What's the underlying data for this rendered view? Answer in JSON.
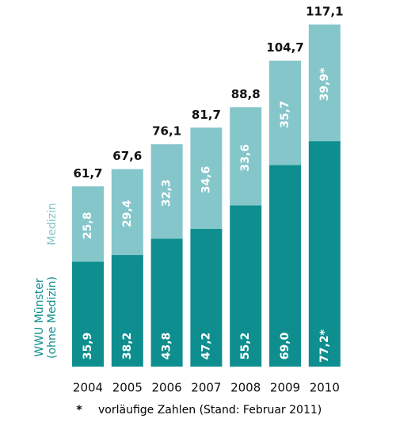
{
  "chart_data": {
    "type": "stacked-bar",
    "categories": [
      "2004",
      "2005",
      "2006",
      "2007",
      "2008",
      "2009",
      "2010"
    ],
    "series": [
      {
        "name": "WWU Münster (ohne Medizin)",
        "color": "#0f8e8f",
        "values": [
          35.9,
          38.2,
          43.8,
          47.2,
          55.2,
          69.0,
          77.2
        ],
        "value_labels": [
          "35,9",
          "38,2",
          "43,8",
          "47,2",
          "55,2",
          "69,0",
          "77,2*"
        ]
      },
      {
        "name": "Medizin",
        "color": "#85c6cb",
        "values": [
          25.8,
          29.4,
          32.3,
          34.6,
          33.6,
          35.7,
          39.9
        ],
        "value_labels": [
          "25,8",
          "29,4",
          "32,3",
          "34,6",
          "33,6",
          "35,7",
          "39,9*"
        ]
      }
    ],
    "totals": {
      "values": [
        61.7,
        67.6,
        76.1,
        81.7,
        88.8,
        104.7,
        117.1
      ],
      "value_labels": [
        "61,7",
        "67,6",
        "76,1",
        "81,7",
        "88,8",
        "104,7",
        "117,1"
      ]
    },
    "footnote": {
      "marker": "*",
      "text": "vorläufige Zahlen (Stand: Februar 2011)"
    }
  }
}
